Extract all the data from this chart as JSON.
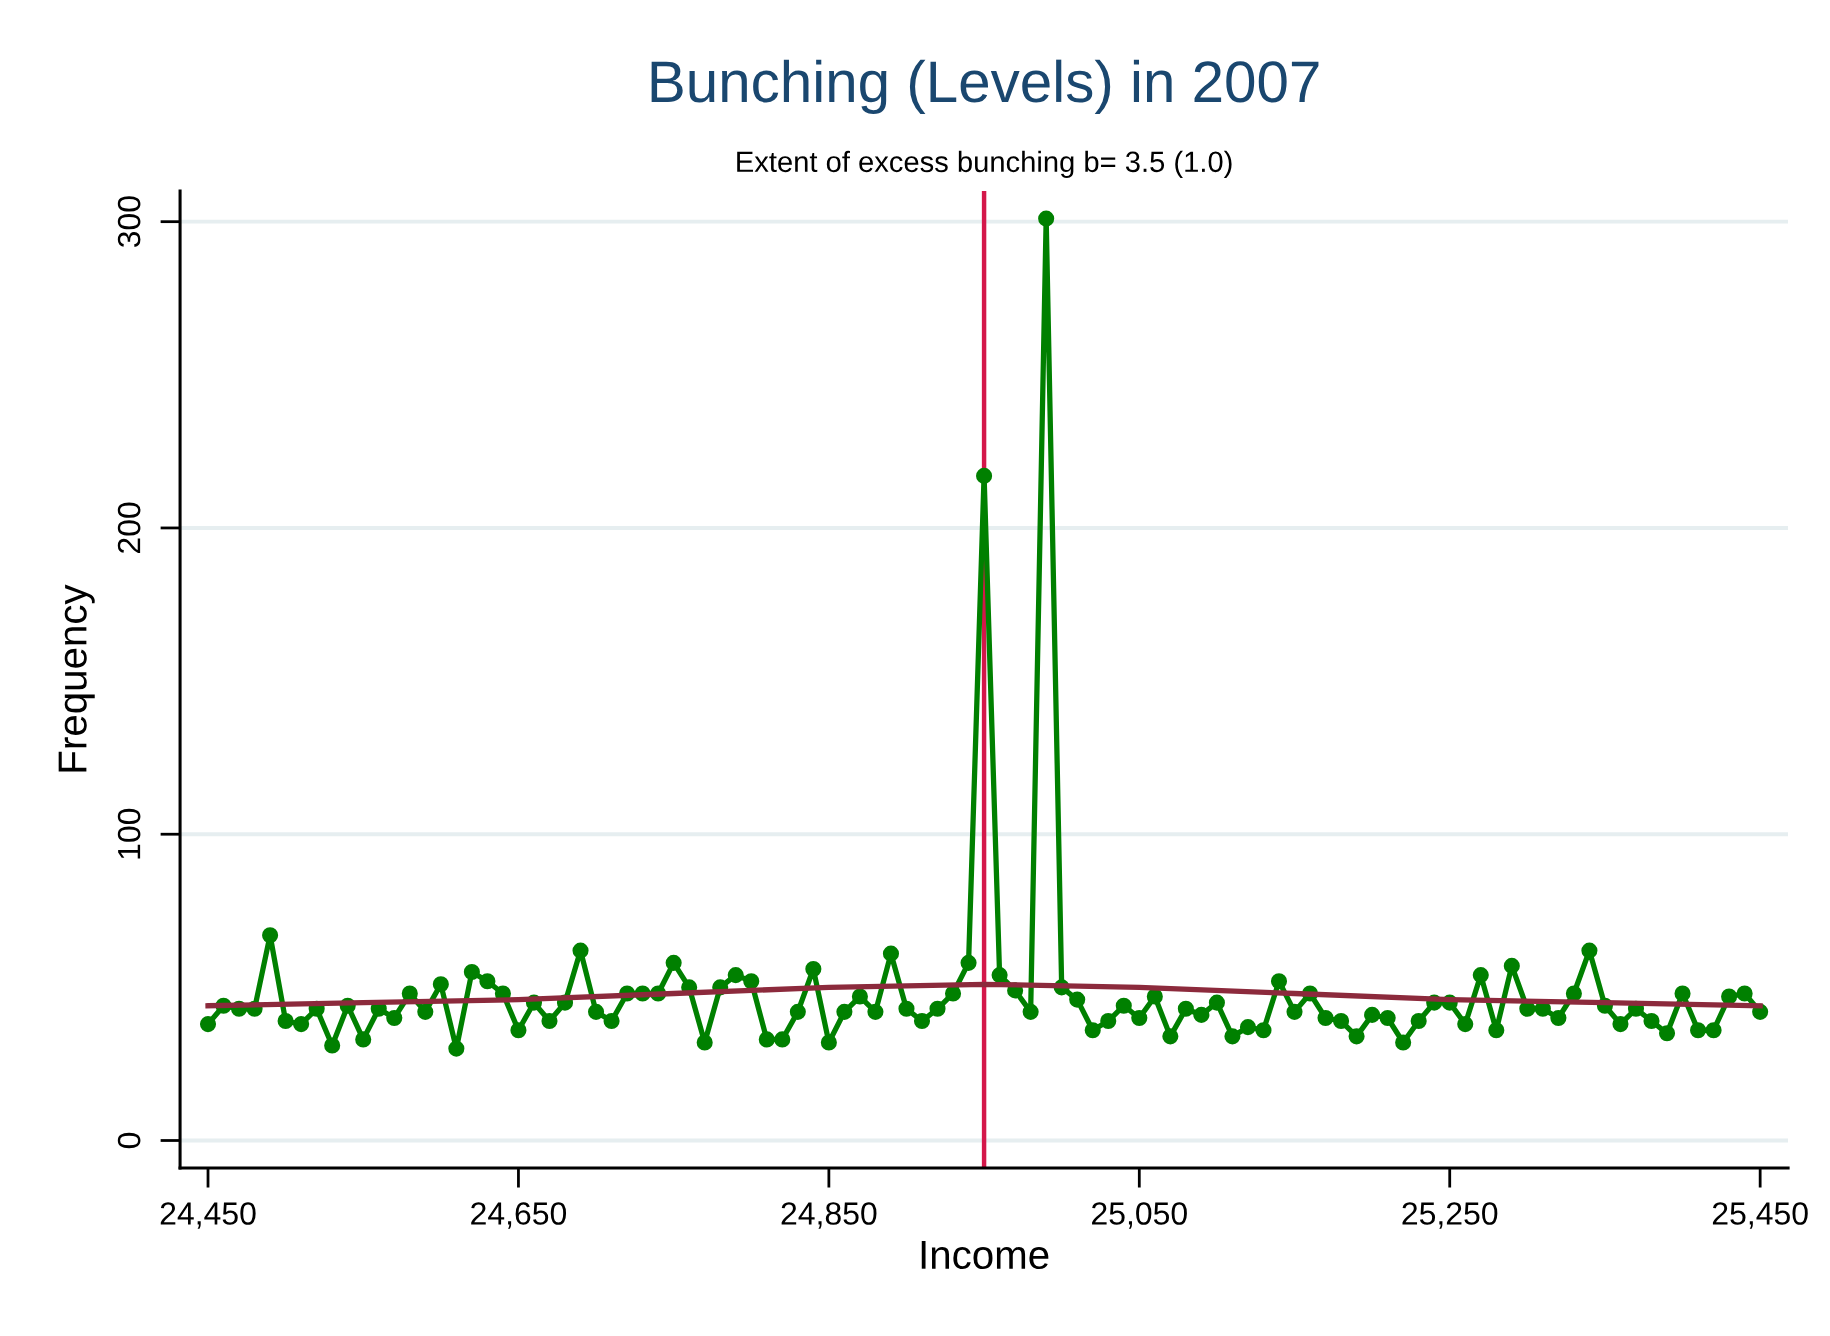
{
  "chart_data": {
    "type": "line",
    "title": "Bunching (Levels) in 2007",
    "subtitle": "Extent of excess bunching b= 3.5 (1.0)",
    "xlabel": "Income",
    "ylabel": "Frequency",
    "x": [
      24450,
      24460,
      24470,
      24480,
      24490,
      24500,
      24510,
      24520,
      24530,
      24540,
      24550,
      24560,
      24570,
      24580,
      24590,
      24600,
      24610,
      24620,
      24630,
      24640,
      24650,
      24660,
      24670,
      24680,
      24690,
      24700,
      24710,
      24720,
      24730,
      24740,
      24750,
      24760,
      24770,
      24780,
      24790,
      24800,
      24810,
      24820,
      24830,
      24840,
      24850,
      24860,
      24870,
      24880,
      24890,
      24900,
      24910,
      24920,
      24930,
      24940,
      24950,
      24960,
      24970,
      24980,
      24990,
      25000,
      25010,
      25020,
      25030,
      25040,
      25050,
      25060,
      25070,
      25080,
      25090,
      25100,
      25110,
      25120,
      25130,
      25140,
      25150,
      25160,
      25170,
      25180,
      25190,
      25200,
      25210,
      25220,
      25230,
      25240,
      25250,
      25260,
      25270,
      25280,
      25290,
      25300,
      25310,
      25320,
      25330,
      25340,
      25350,
      25360,
      25370,
      25380,
      25390,
      25400,
      25410,
      25420,
      25430,
      25440,
      25450
    ],
    "series": [
      {
        "color": "#008000",
        "marker": "circle",
        "values": [
          38,
          44,
          43,
          43,
          67,
          39,
          38,
          43,
          31,
          44,
          33,
          43,
          40,
          48,
          42,
          51,
          30,
          55,
          52,
          48,
          36,
          45,
          39,
          45,
          62,
          42,
          39,
          48,
          48,
          48,
          58,
          50,
          32,
          50,
          54,
          52,
          33,
          33,
          42,
          56,
          32,
          42,
          47,
          42,
          61,
          43,
          39,
          43,
          48,
          58,
          217,
          54,
          49,
          42,
          301,
          50,
          46,
          36,
          39,
          44,
          40,
          47,
          34,
          43,
          41,
          45,
          34,
          37,
          36,
          52,
          42,
          48,
          40,
          39,
          34,
          41,
          40,
          32,
          39,
          45,
          45,
          38,
          54,
          36,
          57,
          43,
          43,
          40,
          48,
          62,
          44,
          38,
          43,
          39,
          35,
          48,
          36,
          36,
          47,
          48,
          42
        ]
      },
      {
        "type": "line",
        "color": "#8c2a3c",
        "marker": "none",
        "x": [
          24450,
          24550,
          24650,
          24750,
          24850,
          24950,
          25050,
          25150,
          25250,
          25350,
          25450
        ],
        "values": [
          44,
          45,
          46,
          48,
          50,
          51,
          50,
          48,
          46,
          45,
          44
        ]
      }
    ],
    "xlim": [
      24432,
      25468
    ],
    "ylim": [
      -9,
      310
    ],
    "xticks": [
      {
        "value": 24450,
        "label": "24,450"
      },
      {
        "value": 24650,
        "label": "24,650"
      },
      {
        "value": 24850,
        "label": "24,850"
      },
      {
        "value": 25050,
        "label": "25,050"
      },
      {
        "value": 25250,
        "label": "25,250"
      },
      {
        "value": 25450,
        "label": "25,450"
      }
    ],
    "yticks": [
      0,
      100,
      200,
      300
    ],
    "ref_lines": [
      {
        "axis": "x",
        "value": 24950,
        "color": "#d4174a"
      }
    ],
    "grid": "y"
  }
}
